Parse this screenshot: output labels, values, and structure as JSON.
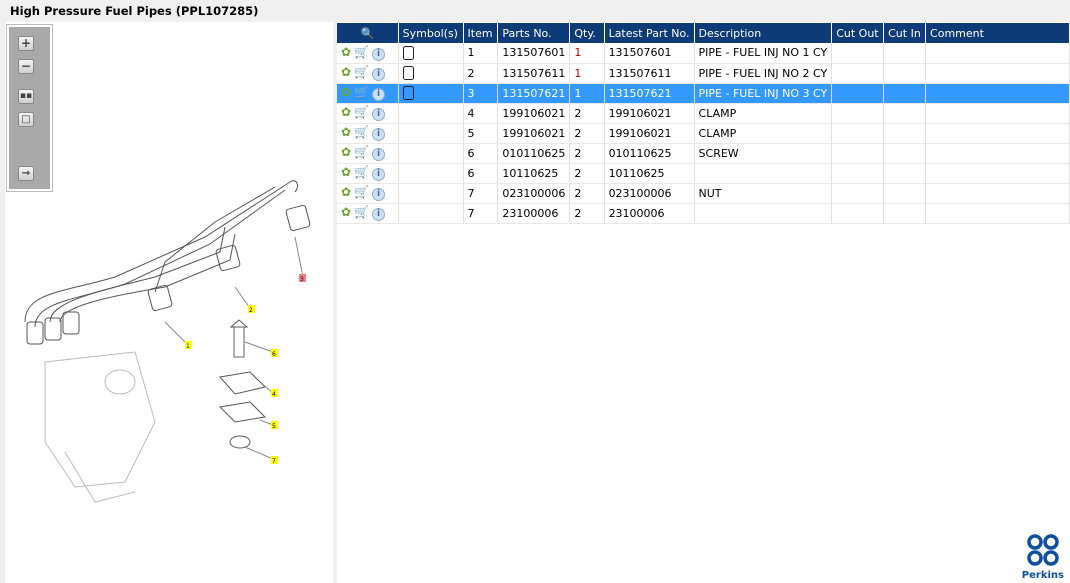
{
  "title": "High Pressure Fuel Pipes (PPL107285)",
  "toolbar": {
    "zoom_in": "zoom-in",
    "zoom_out": "zoom-out",
    "fit": "fit",
    "actual": "actual-size",
    "export": "export"
  },
  "diagram": {
    "callouts": [
      "1",
      "2",
      "3",
      "4",
      "5",
      "6",
      "7"
    ]
  },
  "table": {
    "headers": [
      "Symbol(s)",
      "Item",
      "Parts No.",
      "Qty.",
      "Latest Part No.",
      "Description",
      "Cut Out",
      "Cut In",
      "Comment"
    ],
    "rows": [
      {
        "symbol": true,
        "item": "1",
        "part": "131507601",
        "qty": "1",
        "latest": "131507601",
        "desc": "PIPE - FUEL INJ NO 1 CY",
        "selected": false
      },
      {
        "symbol": true,
        "item": "2",
        "part": "131507611",
        "qty": "1",
        "latest": "131507611",
        "desc": "PIPE - FUEL INJ NO 2 CY",
        "selected": false
      },
      {
        "symbol": true,
        "item": "3",
        "part": "131507621",
        "qty": "1",
        "latest": "131507621",
        "desc": "PIPE - FUEL INJ NO 3 CY",
        "selected": true
      },
      {
        "symbol": false,
        "item": "4",
        "part": "199106021",
        "qty": "2",
        "latest": "199106021",
        "desc": "CLAMP",
        "selected": false
      },
      {
        "symbol": false,
        "item": "5",
        "part": "199106021",
        "qty": "2",
        "latest": "199106021",
        "desc": "CLAMP",
        "selected": false
      },
      {
        "symbol": false,
        "item": "6",
        "part": "010110625",
        "qty": "2",
        "latest": "010110625",
        "desc": "SCREW",
        "selected": false
      },
      {
        "symbol": false,
        "item": "6",
        "part": "10110625",
        "qty": "2",
        "latest": "10110625",
        "desc": "",
        "selected": false
      },
      {
        "symbol": false,
        "item": "7",
        "part": "023100006",
        "qty": "2",
        "latest": "023100006",
        "desc": "NUT",
        "selected": false
      },
      {
        "symbol": false,
        "item": "7",
        "part": "23100006",
        "qty": "2",
        "latest": "23100006",
        "desc": "",
        "selected": false
      }
    ]
  },
  "logo": "Perkins"
}
